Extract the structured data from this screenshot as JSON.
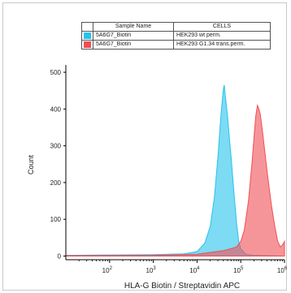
{
  "legend": {
    "header": [
      "Sample Name",
      "CELLS"
    ],
    "rows": [
      {
        "sample": "5A6G7_Biotin",
        "cells": "HEK293 wt perm.",
        "color": "#27c3ec"
      },
      {
        "sample": "5A6G7_Biotin",
        "cells": "HEK293 G1.34 trans.perm.",
        "color": "#f04f55"
      }
    ]
  },
  "chart_data": {
    "type": "area",
    "xlabel": "HLA-G Biotin / Streptavidin APC",
    "ylabel": "Count",
    "xscale": "log",
    "xlim": [
      10,
      1000000
    ],
    "ylim": [
      -10,
      520
    ],
    "grid": false,
    "xticks": [
      {
        "value": 100,
        "base": "10",
        "exp": "2"
      },
      {
        "value": 1000,
        "base": "10",
        "exp": "3"
      },
      {
        "value": 10000,
        "base": "10",
        "exp": "4"
      },
      {
        "value": 100000,
        "base": "10",
        "exp": "5"
      },
      {
        "value": 1000000,
        "base": "10",
        "exp": "6"
      }
    ],
    "yticks": [
      0,
      100,
      200,
      300,
      400,
      500
    ],
    "series": [
      {
        "name": "5A6G7_Biotin — HEK293 wt perm.",
        "color": "#27c3ec",
        "points": [
          [
            10,
            2
          ],
          [
            100,
            3
          ],
          [
            1000,
            4
          ],
          [
            5000,
            6
          ],
          [
            10000,
            12
          ],
          [
            15000,
            35
          ],
          [
            20000,
            80
          ],
          [
            25000,
            160
          ],
          [
            30000,
            270
          ],
          [
            35000,
            380
          ],
          [
            40000,
            455
          ],
          [
            42000,
            465
          ],
          [
            45000,
            430
          ],
          [
            50000,
            380
          ],
          [
            55000,
            320
          ],
          [
            60000,
            270
          ],
          [
            70000,
            170
          ],
          [
            80000,
            90
          ],
          [
            90000,
            40
          ],
          [
            100000,
            20
          ],
          [
            130000,
            5
          ],
          [
            200000,
            2
          ],
          [
            1000000,
            0
          ]
        ]
      },
      {
        "name": "5A6G7_Biotin — HEK293 G1.34 trans.perm.",
        "color": "#f04f55",
        "points": [
          [
            10,
            1
          ],
          [
            1000,
            2
          ],
          [
            10000,
            5
          ],
          [
            40000,
            15
          ],
          [
            60000,
            20
          ],
          [
            80000,
            25
          ],
          [
            100000,
            40
          ],
          [
            120000,
            70
          ],
          [
            150000,
            150
          ],
          [
            180000,
            250
          ],
          [
            200000,
            320
          ],
          [
            220000,
            380
          ],
          [
            240000,
            410
          ],
          [
            260000,
            400
          ],
          [
            280000,
            385
          ],
          [
            320000,
            330
          ],
          [
            400000,
            230
          ],
          [
            500000,
            140
          ],
          [
            600000,
            80
          ],
          [
            700000,
            40
          ],
          [
            800000,
            25
          ],
          [
            900000,
            30
          ],
          [
            1000000,
            40
          ]
        ]
      }
    ]
  }
}
